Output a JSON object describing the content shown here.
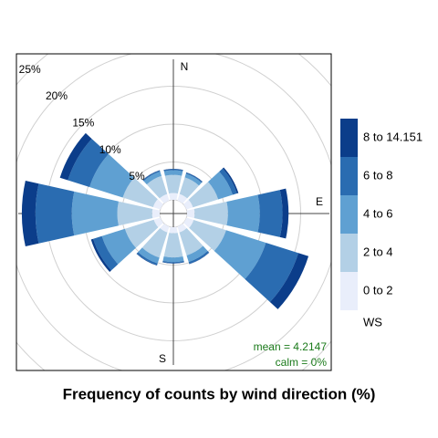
{
  "chart_data": {
    "type": "windrose",
    "title": "Frequency of counts by wind direction (%)",
    "x": [
      0,
      30,
      60,
      90,
      120,
      150,
      180,
      210,
      240,
      270,
      300,
      330
    ],
    "xticks": [
      {
        "value": 0,
        "label": "N"
      },
      {
        "value": 90,
        "label": "E"
      },
      {
        "value": 180,
        "label": "S"
      }
    ],
    "rlim": [
      0,
      25
    ],
    "rticks": [
      {
        "value": 5,
        "label": "5%"
      },
      {
        "value": 10,
        "label": "10%"
      },
      {
        "value": 15,
        "label": "15%"
      },
      {
        "value": 20,
        "label": "20%"
      },
      {
        "value": 25,
        "label": "25%"
      }
    ],
    "grid": true,
    "legend_title": "WS",
    "series": [
      {
        "name": "0 to 2",
        "color": "#e9eefb",
        "values": [
          0.9,
          0.9,
          0.9,
          1.0,
          1.0,
          0.8,
          0.8,
          0.8,
          0.9,
          1.0,
          1.0,
          0.9
        ]
      },
      {
        "name": "2 to 4",
        "color": "#b3d0e6",
        "values": [
          2.4,
          2.3,
          3.5,
          4.4,
          4.5,
          3.2,
          3.2,
          3.5,
          4.0,
          4.6,
          4.2,
          2.5
        ]
      },
      {
        "name": "4 to 6",
        "color": "#5fa0d2",
        "values": [
          0.6,
          0.5,
          2.0,
          4.2,
          5.5,
          0.9,
          0.6,
          0.8,
          3.2,
          6.0,
          4.6,
          0.6
        ]
      },
      {
        "name": "6 to 8",
        "color": "#2a6cb1",
        "values": [
          0.15,
          0.15,
          0.6,
          3.0,
          4.5,
          0.25,
          0.15,
          0.25,
          1.2,
          4.8,
          3.0,
          0.15
        ]
      },
      {
        "name": "8 to 14.151",
        "color": "#0b3d8a",
        "values": [
          0.05,
          0.05,
          0.2,
          0.8,
          1.4,
          0.05,
          0.05,
          0.05,
          0.3,
          1.8,
          1.1,
          0.05
        ]
      }
    ],
    "annotations": [
      "mean = 4.2147",
      "calm = 0%"
    ]
  }
}
